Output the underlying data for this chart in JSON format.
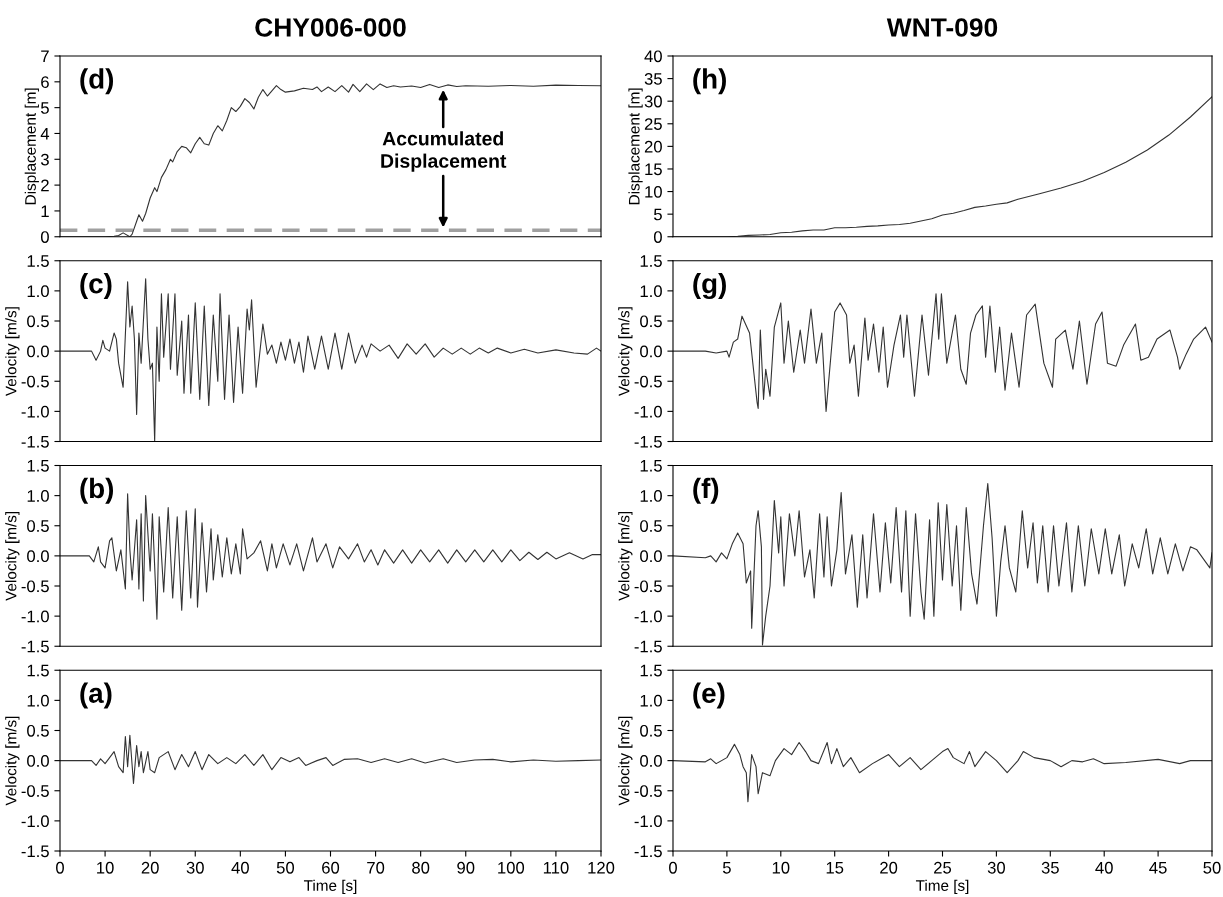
{
  "chart_data": [
    {
      "type": "line",
      "title": "CHY006-000",
      "ylabel": "Displacement [m]",
      "xlim": [
        0,
        120
      ],
      "ylim": [
        0,
        7
      ],
      "yticks": [
        0,
        1,
        2,
        3,
        4,
        5,
        6,
        7
      ],
      "tick_labels": "y",
      "grid": false,
      "legend": false,
      "annotations": [
        "(d)",
        {
          "text": "Accumulated\nDisplacement",
          "x": 85,
          "y": 5.8
        }
      ],
      "ref_lines": [
        {
          "axis": "y",
          "value": 0.25,
          "color": "#a0a0a0",
          "line_style": "dashed"
        }
      ],
      "series": [
        {
          "color": "#333333",
          "x": [
            0,
            9,
            10,
            12,
            13,
            14,
            15.5,
            16,
            17,
            17.5,
            18.3,
            19,
            20,
            21,
            21.5,
            22.5,
            23.5,
            24.5,
            25,
            26,
            27,
            28,
            29,
            30,
            31,
            32,
            33,
            34,
            35,
            36,
            37,
            38,
            39,
            40,
            41,
            42,
            43,
            44,
            45,
            46,
            47,
            48,
            49,
            50,
            52,
            54,
            56,
            57,
            58,
            59.5,
            61,
            62.5,
            64,
            65,
            66.5,
            68,
            69.5,
            71,
            72.5,
            74,
            75.5,
            78,
            80,
            82,
            84,
            86,
            88,
            90,
            95,
            100,
            105,
            110,
            115,
            120
          ],
          "values": [
            0,
            0,
            0,
            0.02,
            0.05,
            0.15,
            0,
            0.1,
            0.6,
            0.85,
            0.6,
            0.9,
            1.5,
            1.9,
            1.75,
            2.3,
            2.6,
            3.0,
            2.9,
            3.3,
            3.5,
            3.45,
            3.25,
            3.6,
            3.85,
            3.6,
            3.55,
            4.0,
            4.3,
            4.1,
            4.5,
            5.0,
            4.85,
            5.05,
            5.35,
            5.2,
            4.95,
            5.4,
            5.7,
            5.45,
            5.65,
            5.85,
            5.7,
            5.6,
            5.65,
            5.75,
            5.7,
            5.8,
            5.62,
            5.8,
            5.62,
            5.85,
            5.6,
            5.9,
            5.62,
            5.92,
            5.7,
            5.92,
            5.78,
            5.85,
            5.8,
            5.84,
            5.78,
            5.9,
            5.78,
            5.88,
            5.82,
            5.85,
            5.83,
            5.86,
            5.83,
            5.87,
            5.86,
            5.85
          ]
        }
      ]
    },
    {
      "type": "line",
      "title": "WNT-090",
      "ylabel": "Displacement [m]",
      "xlim": [
        0,
        50
      ],
      "ylim": [
        0,
        40
      ],
      "yticks": [
        0,
        5,
        10,
        15,
        20,
        25,
        30,
        35,
        40
      ],
      "tick_labels": "y",
      "grid": false,
      "legend": false,
      "annotations": [
        "(h)"
      ],
      "series": [
        {
          "color": "#333333",
          "x": [
            0,
            5,
            6,
            7,
            8,
            9,
            10,
            11,
            12,
            13,
            14,
            15,
            16,
            17,
            18,
            19,
            20,
            21,
            22,
            23,
            24,
            25,
            26,
            27,
            28,
            29,
            30,
            31,
            32,
            34,
            36,
            38,
            40,
            42,
            44,
            46,
            48,
            50
          ],
          "values": [
            0,
            0,
            0.1,
            0.3,
            0.4,
            0.5,
            0.9,
            1.0,
            1.3,
            1.5,
            1.5,
            2.0,
            2.0,
            2.1,
            2.3,
            2.4,
            2.6,
            2.7,
            3.0,
            3.5,
            4.0,
            4.8,
            5.2,
            5.8,
            6.5,
            6.8,
            7.2,
            7.5,
            8.3,
            9.5,
            10.8,
            12.3,
            14.2,
            16.5,
            19.2,
            22.5,
            26.5,
            31.0
          ]
        }
      ]
    },
    {
      "type": "line",
      "ylabel": "Velocity [m/s]",
      "xlim": [
        0,
        120
      ],
      "ylim": [
        -1.5,
        1.5
      ],
      "yticks": [
        {
          "value": -1.5,
          "label": "-1.5"
        },
        {
          "value": -1.0,
          "label": "-1.0"
        },
        {
          "value": -0.5,
          "label": "-0.5"
        },
        {
          "value": 0,
          "label": "0.0"
        },
        {
          "value": 0.5,
          "label": "0.5"
        },
        {
          "value": 1.0,
          "label": "1.0"
        },
        {
          "value": 1.5,
          "label": "1.5"
        }
      ],
      "tick_labels": "y",
      "grid": false,
      "legend": false,
      "annotations": [
        "(c)"
      ],
      "series": [
        {
          "color": "#333333",
          "x": [
            0,
            7,
            8,
            9,
            9.5,
            10,
            11,
            12,
            12.5,
            13,
            14,
            15,
            15.5,
            16,
            16.5,
            17,
            17.5,
            18,
            19,
            19.5,
            20,
            20.5,
            21,
            21.5,
            22,
            22.5,
            23,
            24,
            24.5,
            25.5,
            26,
            27,
            27.5,
            28.5,
            29,
            30,
            31,
            32,
            33,
            34,
            35,
            35.5,
            36.5,
            37.5,
            38.5,
            39.5,
            40.5,
            41.5,
            42,
            42.5,
            43.5,
            45,
            46,
            47,
            48,
            49,
            50,
            51,
            52,
            53,
            54,
            55,
            56.5,
            58,
            59.5,
            61,
            62.5,
            64,
            65.5,
            67,
            68,
            69,
            71,
            73,
            75,
            77,
            79,
            81,
            83,
            85,
            87,
            89,
            91,
            93,
            95,
            97,
            100,
            103,
            106,
            110,
            114,
            117,
            119,
            120
          ],
          "values": [
            0,
            0,
            -0.15,
            0.0,
            0.18,
            0.05,
            0.0,
            0.3,
            0.2,
            -0.2,
            -0.6,
            1.15,
            0.4,
            0.75,
            0.2,
            -1.05,
            0.3,
            -0.2,
            1.2,
            0.2,
            -0.3,
            -0.2,
            -1.5,
            0.4,
            -0.5,
            0.95,
            -0.1,
            0.95,
            -0.3,
            0.95,
            -0.4,
            0.5,
            -0.7,
            0.6,
            -0.7,
            0.8,
            -0.8,
            0.75,
            -0.9,
            0.6,
            -0.5,
            0.95,
            -0.8,
            0.6,
            -0.85,
            0.4,
            -0.7,
            0.7,
            0.35,
            0.85,
            -0.6,
            0.45,
            -0.05,
            0.1,
            -0.2,
            0.15,
            -0.15,
            0.2,
            -0.2,
            0.15,
            -0.35,
            0.25,
            -0.3,
            0.25,
            -0.3,
            0.3,
            -0.3,
            0.3,
            -0.2,
            0.1,
            -0.1,
            0.12,
            0.0,
            0.1,
            -0.12,
            0.12,
            -0.05,
            0.12,
            -0.1,
            0.05,
            -0.05,
            0.05,
            -0.05,
            0.05,
            -0.03,
            0.05,
            -0.03,
            0.03,
            -0.03,
            0.02,
            -0.03,
            -0.05,
            0.05,
            0.0
          ]
        }
      ]
    },
    {
      "type": "line",
      "ylabel": "Velocity [m/s]",
      "xlim": [
        0,
        50
      ],
      "ylim": [
        -1.5,
        1.5
      ],
      "yticks": [
        {
          "value": -1.5,
          "label": "-1.5"
        },
        {
          "value": -1.0,
          "label": "-1.0"
        },
        {
          "value": -0.5,
          "label": "-0.5"
        },
        {
          "value": 0,
          "label": "0.0"
        },
        {
          "value": 0.5,
          "label": "0.5"
        },
        {
          "value": 1.0,
          "label": "1.0"
        },
        {
          "value": 1.5,
          "label": "1.5"
        }
      ],
      "tick_labels": "y",
      "grid": false,
      "legend": false,
      "annotations": [
        "(g)"
      ],
      "series": [
        {
          "color": "#333333",
          "x": [
            0,
            3,
            4,
            5,
            5.2,
            5.6,
            6.0,
            6.4,
            7.1,
            7.8,
            7.9,
            8.1,
            8.4,
            8.6,
            9.0,
            9.4,
            10.0,
            10.3,
            10.7,
            11.2,
            11.8,
            12.2,
            12.8,
            13.3,
            13.8,
            14.2,
            15.0,
            15.5,
            16.1,
            16.4,
            16.8,
            17.2,
            17.8,
            18.1,
            18.6,
            19.1,
            19.5,
            19.9,
            20.5,
            21.1,
            21.4,
            21.7,
            22.4,
            23.1,
            23.7,
            24.4,
            24.65,
            24.9,
            25.4,
            26.2,
            26.7,
            27.2,
            27.6,
            28.1,
            28.7,
            29.0,
            29.4,
            29.9,
            30.3,
            30.8,
            31.4,
            32.1,
            32.8,
            33.6,
            34.4,
            35.2,
            35.5,
            36.4,
            37.1,
            37.7,
            38.4,
            39.2,
            39.8,
            40.3,
            41.1,
            41.8,
            42.9,
            43.4,
            44.1,
            44.9,
            46.1,
            46.8,
            47.0,
            47.6,
            48.3,
            49.4,
            50
          ],
          "values": [
            0,
            0,
            -0.03,
            0.0,
            -0.1,
            0.15,
            0.2,
            0.58,
            0.3,
            -0.85,
            -0.95,
            0.35,
            -0.8,
            -0.3,
            -0.75,
            0.4,
            0.8,
            -0.2,
            0.5,
            -0.35,
            0.35,
            -0.2,
            0.7,
            -0.2,
            0.3,
            -1.0,
            0.65,
            0.8,
            0.6,
            -0.2,
            0.1,
            -0.75,
            0.55,
            -0.15,
            0.45,
            -0.35,
            0.4,
            -0.6,
            0.1,
            0.6,
            -0.1,
            0.6,
            -0.75,
            0.6,
            -0.4,
            0.95,
            0.2,
            0.95,
            -0.2,
            0.6,
            -0.3,
            -0.55,
            0.3,
            0.6,
            0.75,
            -0.1,
            0.75,
            -0.35,
            0.4,
            -0.65,
            0.3,
            -0.6,
            0.6,
            0.78,
            -0.2,
            -0.6,
            0.2,
            0.35,
            -0.3,
            0.5,
            -0.55,
            0.45,
            0.65,
            -0.2,
            -0.25,
            0.1,
            0.45,
            -0.15,
            -0.1,
            0.2,
            0.35,
            -0.1,
            -0.3,
            -0.05,
            0.2,
            0.4,
            0.15
          ]
        }
      ]
    },
    {
      "type": "line",
      "ylabel": "Velocity [m/s]",
      "xlim": [
        0,
        120
      ],
      "ylim": [
        -1.5,
        1.5
      ],
      "yticks": [
        {
          "value": -1.5,
          "label": "-1.5"
        },
        {
          "value": -1.0,
          "label": "-1.0"
        },
        {
          "value": -0.5,
          "label": "-0.5"
        },
        {
          "value": 0,
          "label": "0.0"
        },
        {
          "value": 0.5,
          "label": "0.5"
        },
        {
          "value": 1.0,
          "label": "1.0"
        },
        {
          "value": 1.5,
          "label": "1.5"
        }
      ],
      "tick_labels": "y",
      "grid": false,
      "legend": false,
      "annotations": [
        "(b)"
      ],
      "series": [
        {
          "color": "#333333",
          "x": [
            0,
            6.5,
            7.5,
            8.5,
            9,
            10,
            11,
            11.5,
            12.5,
            13.5,
            14.5,
            15,
            15.5,
            16,
            17,
            17.5,
            18,
            18.5,
            19,
            20,
            20.5,
            21.5,
            22,
            23,
            24,
            25,
            26,
            27,
            28,
            29,
            30,
            30.5,
            31.5,
            32.5,
            33.5,
            34,
            35,
            36,
            37,
            38,
            39,
            40,
            40.5,
            41.5,
            43,
            44.5,
            46,
            47,
            48,
            49.5,
            51,
            52.5,
            54,
            56,
            57,
            59,
            60.5,
            62,
            64,
            66,
            67.5,
            69,
            70.5,
            72,
            74,
            76,
            78,
            80,
            82,
            84,
            86,
            88,
            90,
            92,
            94,
            96,
            98,
            100,
            102,
            104,
            106,
            108,
            110,
            113,
            116,
            118,
            120
          ],
          "values": [
            0,
            0,
            -0.1,
            0.15,
            -0.1,
            -0.2,
            0.25,
            0.3,
            -0.25,
            0.1,
            -0.55,
            1.03,
            0.1,
            -0.4,
            0.6,
            -0.55,
            0.7,
            -0.75,
            1.0,
            -0.25,
            0.7,
            -1.05,
            0.65,
            -0.6,
            0.8,
            -0.7,
            0.65,
            -0.9,
            0.75,
            -0.7,
            0.78,
            -0.85,
            0.55,
            -0.6,
            0.45,
            -0.4,
            0.35,
            -0.35,
            0.3,
            -0.3,
            0.2,
            -0.3,
            0.45,
            -0.05,
            0.05,
            0.25,
            -0.25,
            0.2,
            -0.2,
            0.2,
            -0.15,
            0.2,
            -0.25,
            0.3,
            -0.1,
            0.2,
            -0.2,
            0.15,
            -0.05,
            0.2,
            -0.1,
            0.1,
            -0.15,
            0.1,
            -0.12,
            0.1,
            -0.12,
            0.1,
            -0.1,
            0.1,
            -0.12,
            0.1,
            -0.1,
            0.1,
            -0.1,
            0.1,
            -0.1,
            0.1,
            -0.08,
            0.06,
            -0.06,
            0.06,
            -0.05,
            0.05,
            -0.05,
            0.02,
            0.02
          ]
        }
      ]
    },
    {
      "type": "line",
      "ylabel": "Velocity [m/s]",
      "xlim": [
        0,
        50
      ],
      "ylim": [
        -1.5,
        1.5
      ],
      "yticks": [
        {
          "value": -1.5,
          "label": "-1.5"
        },
        {
          "value": -1.0,
          "label": "-1.0"
        },
        {
          "value": -0.5,
          "label": "-0.5"
        },
        {
          "value": 0,
          "label": "0.0"
        },
        {
          "value": 0.5,
          "label": "0.5"
        },
        {
          "value": 1.0,
          "label": "1.0"
        },
        {
          "value": 1.5,
          "label": "1.5"
        }
      ],
      "tick_labels": "y",
      "grid": false,
      "legend": false,
      "annotations": [
        "(f)"
      ],
      "series": [
        {
          "color": "#333333",
          "x": [
            0,
            3,
            3.5,
            4,
            4.5,
            5,
            5.5,
            6,
            6.5,
            6.8,
            7.2,
            7.3,
            7.7,
            7.9,
            8.2,
            8.3,
            8.6,
            9.0,
            9.4,
            9.8,
            10.0,
            10.3,
            10.8,
            11.3,
            11.7,
            12.2,
            12.7,
            13.1,
            13.6,
            14.0,
            14.3,
            14.7,
            15.2,
            15.6,
            16.0,
            16.6,
            17.1,
            17.6,
            18.0,
            18.6,
            19.2,
            19.7,
            20.2,
            20.7,
            21.2,
            21.6,
            22.0,
            22.5,
            23.0,
            23.3,
            23.8,
            24.2,
            24.6,
            25.0,
            25.4,
            25.9,
            26.3,
            26.7,
            27.2,
            27.7,
            28.2,
            28.8,
            29.2,
            29.6,
            30.0,
            30.4,
            30.8,
            31.2,
            31.8,
            32.4,
            32.9,
            33.4,
            33.8,
            34.3,
            34.8,
            35.3,
            35.8,
            36.5,
            37.0,
            37.6,
            38.2,
            38.8,
            39.5,
            40.1,
            40.7,
            41.4,
            41.9,
            42.6,
            43.2,
            43.9,
            44.5,
            45.2,
            45.9,
            46.6,
            47.3,
            48.0,
            48.6,
            49.2,
            49.8,
            50
          ],
          "values": [
            0,
            -0.03,
            0.0,
            -0.1,
            0.05,
            -0.05,
            0.2,
            0.38,
            0.2,
            -0.45,
            -0.25,
            -1.2,
            0.5,
            0.75,
            0.15,
            -1.48,
            -1.0,
            -0.5,
            0.92,
            0.05,
            0.65,
            -0.5,
            0.7,
            0.0,
            0.75,
            -0.35,
            0.1,
            -0.7,
            0.7,
            -0.35,
            0.65,
            -0.5,
            0.1,
            1.05,
            -0.3,
            0.35,
            -0.85,
            0.35,
            -0.7,
            0.7,
            -0.6,
            0.55,
            -0.45,
            0.8,
            -0.6,
            0.75,
            -1.0,
            0.7,
            -0.6,
            -1.05,
            0.6,
            -1.0,
            0.88,
            -0.4,
            0.85,
            -0.5,
            0.5,
            -0.9,
            0.8,
            -0.3,
            -0.8,
            0.5,
            1.2,
            0.3,
            -1.0,
            -0.1,
            0.5,
            -0.2,
            -0.6,
            0.75,
            -0.2,
            0.55,
            -0.45,
            0.5,
            -0.6,
            0.5,
            -0.5,
            0.55,
            -0.6,
            0.5,
            -0.5,
            0.45,
            -0.3,
            0.45,
            -0.3,
            0.35,
            -0.5,
            0.2,
            -0.2,
            0.45,
            -0.3,
            0.3,
            -0.3,
            0.2,
            -0.25,
            0.15,
            0.1,
            -0.05,
            -0.2,
            0.05
          ]
        }
      ]
    },
    {
      "type": "line",
      "xlabel": "Time [s]",
      "ylabel": "Velocity [m/s]",
      "xlim": [
        0,
        120
      ],
      "xticks": [
        0,
        10,
        20,
        30,
        40,
        50,
        60,
        70,
        80,
        90,
        100,
        110,
        120
      ],
      "ylim": [
        -1.5,
        1.5
      ],
      "yticks": [
        {
          "value": -1.5,
          "label": "-1.5"
        },
        {
          "value": -1.0,
          "label": "-1.0"
        },
        {
          "value": -0.5,
          "label": "-0.5"
        },
        {
          "value": 0,
          "label": "0.0"
        },
        {
          "value": 0.5,
          "label": "0.5"
        },
        {
          "value": 1.0,
          "label": "1.0"
        },
        {
          "value": 1.5,
          "label": "1.5"
        }
      ],
      "grid": false,
      "legend": false,
      "annotations": [
        "(a)"
      ],
      "series": [
        {
          "color": "#333333",
          "x": [
            0,
            7,
            8,
            9,
            10,
            11,
            12,
            13,
            14,
            14.5,
            15,
            15.5,
            16.3,
            17,
            17.5,
            18,
            18.5,
            19.5,
            20,
            21,
            22,
            24,
            25.5,
            27,
            28.5,
            30,
            31.5,
            33,
            35,
            37,
            39,
            41,
            43,
            45,
            47,
            49,
            51,
            53,
            54.5,
            57,
            59,
            60.5,
            63,
            66,
            69,
            72,
            75,
            78,
            81,
            85,
            88,
            92,
            96,
            100,
            105,
            110,
            115,
            120
          ],
          "values": [
            0,
            0,
            -0.08,
            0.03,
            -0.05,
            0.05,
            0.15,
            -0.1,
            -0.2,
            0.4,
            -0.1,
            0.42,
            -0.38,
            0.25,
            -0.1,
            0.15,
            -0.2,
            0.15,
            -0.15,
            -0.2,
            0.05,
            0.15,
            -0.15,
            0.1,
            -0.1,
            0.15,
            -0.15,
            0.1,
            -0.05,
            0.05,
            -0.05,
            0.1,
            -0.08,
            0.1,
            -0.15,
            0.05,
            -0.02,
            0.05,
            -0.08,
            0.0,
            0.05,
            -0.08,
            0.02,
            0.03,
            -0.03,
            0.03,
            -0.03,
            0.03,
            -0.04,
            0.03,
            -0.03,
            0.01,
            0.02,
            -0.02,
            0.01,
            -0.01,
            0.0,
            0.01
          ]
        }
      ]
    },
    {
      "type": "line",
      "xlabel": "Time [s]",
      "ylabel": "Velocity [m/s]",
      "xlim": [
        0,
        50
      ],
      "xticks": [
        0,
        5,
        10,
        15,
        20,
        25,
        30,
        35,
        40,
        45,
        50
      ],
      "ylim": [
        -1.5,
        1.5
      ],
      "yticks": [
        {
          "value": -1.5,
          "label": "-1.5"
        },
        {
          "value": -1.0,
          "label": "-1.0"
        },
        {
          "value": -0.5,
          "label": "-0.5"
        },
        {
          "value": 0,
          "label": "0.0"
        },
        {
          "value": 0.5,
          "label": "0.5"
        },
        {
          "value": 1.0,
          "label": "1.0"
        },
        {
          "value": 1.5,
          "label": "1.5"
        }
      ],
      "grid": false,
      "legend": false,
      "annotations": [
        "(e)"
      ],
      "series": [
        {
          "color": "#333333",
          "x": [
            0,
            3,
            3.5,
            4,
            5,
            5.7,
            6.2,
            6.5,
            6.8,
            6.95,
            7.3,
            7.7,
            7.9,
            8.3,
            9,
            9.5,
            10.3,
            11,
            11.7,
            12.3,
            12.8,
            13.5,
            14.3,
            14.7,
            15.2,
            15.8,
            16.5,
            17.3,
            18.5,
            20,
            21,
            22,
            23,
            24,
            25,
            25.5,
            26,
            27,
            27.5,
            28,
            29,
            30,
            31,
            32,
            32.5,
            33.5,
            35,
            36,
            37,
            38,
            39,
            40,
            42,
            45,
            47,
            48,
            50
          ],
          "values": [
            0,
            -0.02,
            0.03,
            -0.05,
            0.05,
            0.27,
            0.1,
            -0.1,
            -0.2,
            -0.68,
            0.1,
            -0.1,
            -0.55,
            -0.2,
            -0.25,
            0.0,
            0.2,
            0.1,
            0.3,
            0.15,
            0.0,
            -0.05,
            0.3,
            -0.05,
            0.2,
            -0.1,
            0.05,
            -0.2,
            -0.05,
            0.1,
            -0.1,
            0.05,
            -0.15,
            0.0,
            0.15,
            0.2,
            0.05,
            -0.05,
            0.15,
            -0.1,
            0.15,
            0.0,
            -0.2,
            0.0,
            0.15,
            0.05,
            0.0,
            -0.1,
            0.0,
            -0.02,
            0.03,
            -0.05,
            -0.03,
            0.02,
            -0.05,
            0.0,
            0.0
          ]
        }
      ]
    }
  ]
}
